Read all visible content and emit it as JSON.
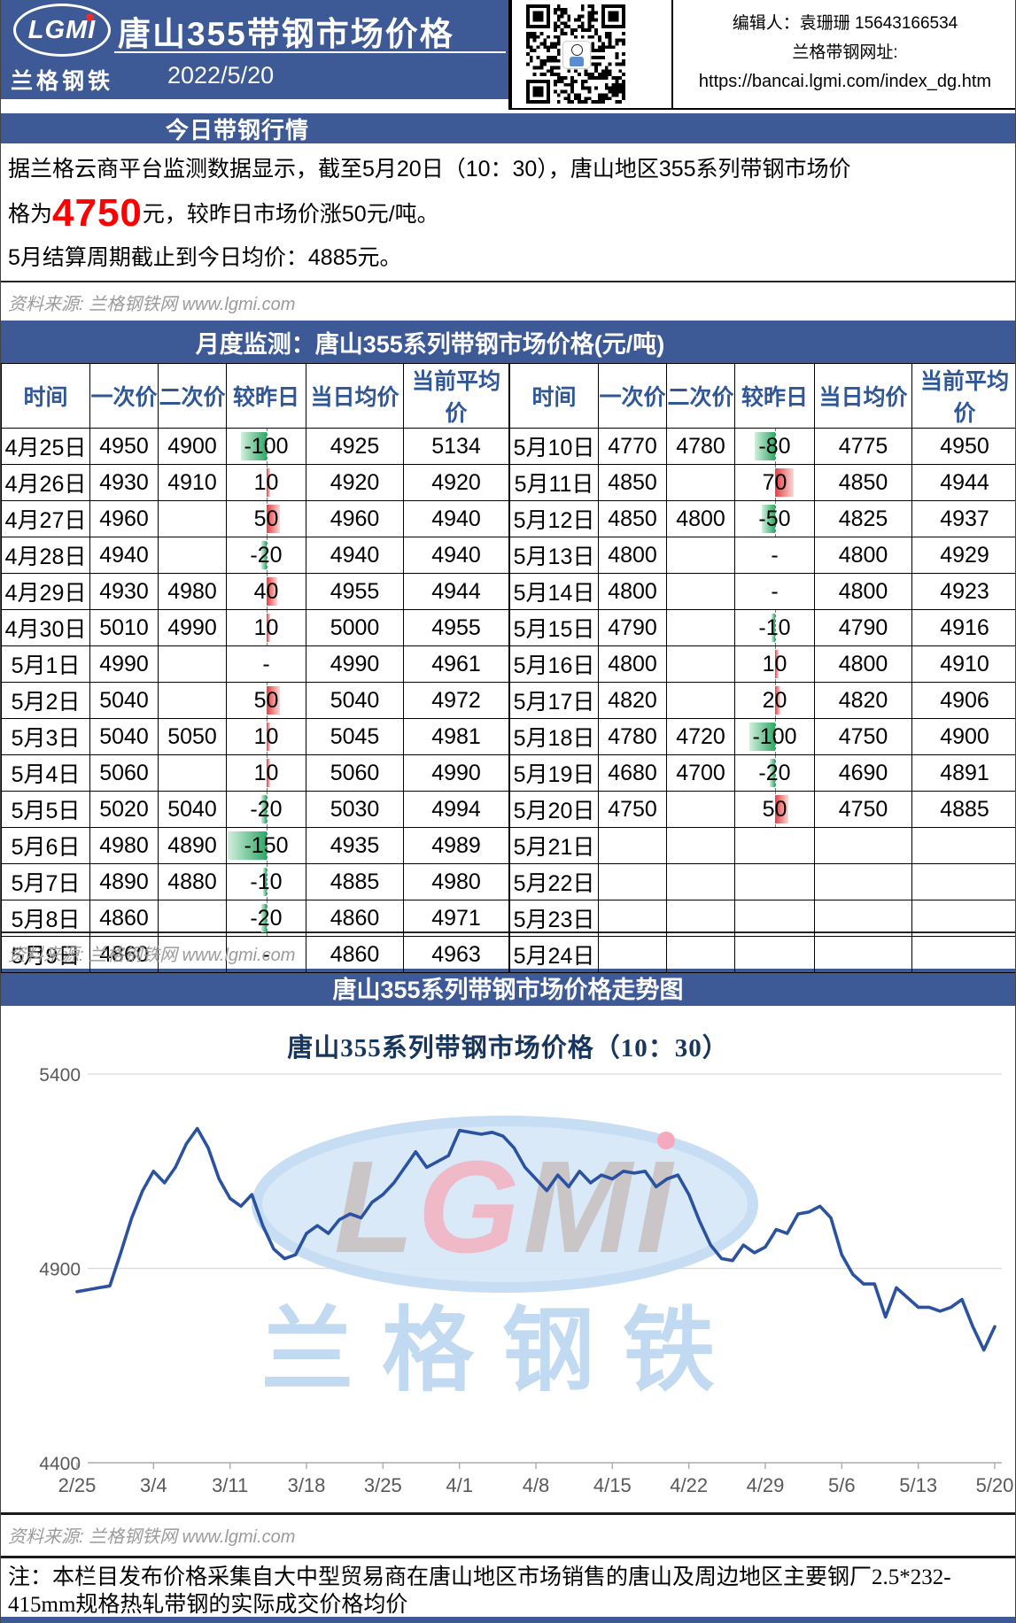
{
  "header": {
    "logo_text": "LGMI",
    "logo_subtext": "兰格钢铁",
    "title": "唐山355带钢市场价格",
    "date": "2022/5/20",
    "editor_line": "编辑人：袁珊珊 15643166534",
    "site_label": "兰格带钢网址:",
    "site_url": "https://bancai.lgmi.com/index_dg.htm"
  },
  "today": {
    "banner": "今日带钢行情",
    "p1_line1": "据兰格云商平台监测数据显示，截至5月20日（10：30），唐山地区355系列带钢市场价",
    "p1_line2_prefix": "格为",
    "price": "4750",
    "p1_line2_suffix": "元，较昨日市场价涨50元/吨。",
    "line3": "5月结算周期截止到今日均价：4885元。"
  },
  "source_note": "资料来源: 兰格钢铁网 www.lgmi.com",
  "table": {
    "banner": "月度监测：唐山355系列带钢市场价格(元/吨)",
    "headers": [
      "时间",
      "一次价",
      "二次价",
      "较昨日",
      "当日均价",
      "当前平均价"
    ],
    "left_rows": [
      [
        "4月25日",
        "4950",
        "4900",
        "-100",
        "4925",
        "5134"
      ],
      [
        "4月26日",
        "4930",
        "4910",
        "10",
        "4920",
        "4920"
      ],
      [
        "4月27日",
        "4960",
        "",
        "50",
        "4960",
        "4940"
      ],
      [
        "4月28日",
        "4940",
        "",
        "-20",
        "4940",
        "4940"
      ],
      [
        "4月29日",
        "4930",
        "4980",
        "40",
        "4955",
        "4944"
      ],
      [
        "4月30日",
        "5010",
        "4990",
        "10",
        "5000",
        "4955"
      ],
      [
        "5月1日",
        "4990",
        "",
        "-",
        "4990",
        "4961"
      ],
      [
        "5月2日",
        "5040",
        "",
        "50",
        "5040",
        "4972"
      ],
      [
        "5月3日",
        "5040",
        "5050",
        "10",
        "5045",
        "4981"
      ],
      [
        "5月4日",
        "5060",
        "",
        "10",
        "5060",
        "4990"
      ],
      [
        "5月5日",
        "5020",
        "5040",
        "-20",
        "5030",
        "4994"
      ],
      [
        "5月6日",
        "4980",
        "4890",
        "-150",
        "4935",
        "4989"
      ],
      [
        "5月7日",
        "4890",
        "4880",
        "-10",
        "4885",
        "4980"
      ],
      [
        "5月8日",
        "4860",
        "",
        "-20",
        "4860",
        "4971"
      ],
      [
        "5月9日",
        "4860",
        "",
        "-",
        "4860",
        "4963"
      ]
    ],
    "right_rows": [
      [
        "5月10日",
        "4770",
        "4780",
        "-80",
        "4775",
        "4950"
      ],
      [
        "5月11日",
        "4850",
        "",
        "70",
        "4850",
        "4944"
      ],
      [
        "5月12日",
        "4850",
        "4800",
        "-50",
        "4825",
        "4937"
      ],
      [
        "5月13日",
        "4800",
        "",
        "-",
        "4800",
        "4929"
      ],
      [
        "5月14日",
        "4800",
        "",
        "-",
        "4800",
        "4923"
      ],
      [
        "5月15日",
        "4790",
        "",
        "-10",
        "4790",
        "4916"
      ],
      [
        "5月16日",
        "4800",
        "",
        "10",
        "4800",
        "4910"
      ],
      [
        "5月17日",
        "4820",
        "",
        "20",
        "4820",
        "4906"
      ],
      [
        "5月18日",
        "4780",
        "4720",
        "-100",
        "4750",
        "4900"
      ],
      [
        "5月19日",
        "4680",
        "4700",
        "-20",
        "4690",
        "4891"
      ],
      [
        "5月20日",
        "4750",
        "",
        "50",
        "4750",
        "4885"
      ],
      [
        "5月21日",
        "",
        "",
        "",
        "",
        ""
      ],
      [
        "5月22日",
        "",
        "",
        "",
        "",
        ""
      ],
      [
        "5月23日",
        "",
        "",
        "",
        "",
        ""
      ],
      [
        "5月24日",
        "",
        "",
        "",
        "",
        ""
      ]
    ]
  },
  "chart": {
    "banner": "唐山355系列带钢市场价格走势图",
    "watermark_logo": "LGMI",
    "watermark_text": "兰格钢铁"
  },
  "chart_data": {
    "type": "line",
    "title": "唐山355系列带钢市场价格（10：30）",
    "x": [
      "2/25",
      "2/26",
      "2/27",
      "2/28",
      "3/1",
      "3/2",
      "3/3",
      "3/4",
      "3/5",
      "3/6",
      "3/7",
      "3/8",
      "3/9",
      "3/10",
      "3/11",
      "3/12",
      "3/13",
      "3/14",
      "3/15",
      "3/16",
      "3/17",
      "3/18",
      "3/19",
      "3/20",
      "3/21",
      "3/22",
      "3/23",
      "3/24",
      "3/25",
      "3/26",
      "3/27",
      "3/28",
      "3/29",
      "3/30",
      "3/31",
      "4/1",
      "4/2",
      "4/3",
      "4/4",
      "4/5",
      "4/6",
      "4/7",
      "4/8",
      "4/9",
      "4/10",
      "4/11",
      "4/12",
      "4/13",
      "4/14",
      "4/15",
      "4/16",
      "4/17",
      "4/18",
      "4/19",
      "4/20",
      "4/21",
      "4/22",
      "4/23",
      "4/24",
      "4/25",
      "4/26",
      "4/27",
      "4/28",
      "4/29",
      "4/30",
      "5/1",
      "5/2",
      "5/3",
      "5/4",
      "5/5",
      "5/6",
      "5/7",
      "5/8",
      "5/9",
      "5/10",
      "5/11",
      "5/12",
      "5/13",
      "5/14",
      "5/15",
      "5/16",
      "5/17",
      "5/18",
      "5/19",
      "5/20"
    ],
    "values": [
      4840,
      4845,
      4850,
      4855,
      4940,
      5030,
      5100,
      5150,
      5120,
      5160,
      5220,
      5260,
      5210,
      5130,
      5080,
      5060,
      5090,
      5010,
      4950,
      4925,
      4935,
      4990,
      5010,
      4990,
      5025,
      5040,
      5030,
      5070,
      5090,
      5120,
      5160,
      5200,
      5160,
      5175,
      5190,
      5255,
      5250,
      5245,
      5250,
      5240,
      5210,
      5160,
      5130,
      5100,
      5140,
      5110,
      5150,
      5120,
      5140,
      5130,
      5150,
      5145,
      5150,
      5110,
      5130,
      5140,
      5090,
      5020,
      4960,
      4925,
      4920,
      4960,
      4940,
      4955,
      5000,
      4990,
      5040,
      5045,
      5060,
      5030,
      4935,
      4885,
      4860,
      4860,
      4775,
      4850,
      4825,
      4800,
      4800,
      4790,
      4800,
      4820,
      4750,
      4690,
      4750
    ],
    "x_tick_labels": [
      "2/25",
      "3/4",
      "3/11",
      "3/18",
      "3/25",
      "4/1",
      "4/8",
      "4/15",
      "4/22",
      "4/29",
      "5/6",
      "5/13",
      "5/20"
    ],
    "x_tick_indices": [
      0,
      7,
      14,
      21,
      28,
      35,
      42,
      49,
      56,
      63,
      70,
      77,
      84
    ],
    "y_ticks": [
      5400,
      4900,
      4400
    ],
    "ylim": [
      4400,
      5400
    ],
    "xlabel": "",
    "ylabel": "",
    "grid": "horizontal",
    "legend": "none",
    "series_color": "#2A52A0"
  },
  "footer": {
    "note": "注：本栏目发布价格采集自大中型贸易商在唐山地区市场销售的唐山及周边地区主要钢厂2.5*232-415mm规格热轧带钢的实际成交价格均价"
  },
  "colors": {
    "banner_blue": "#3D5A97",
    "header_text_blue": "#2F5796",
    "price_red": "#FF0000",
    "bar_negative_green": "#2FA865",
    "bar_positive_red": "#E33E41",
    "line_blue": "#2A52A0",
    "watermark_blue": "#BFD9F1",
    "watermark_pink": "#F2B4C3",
    "watermark_gray": "#C9C3C3"
  }
}
